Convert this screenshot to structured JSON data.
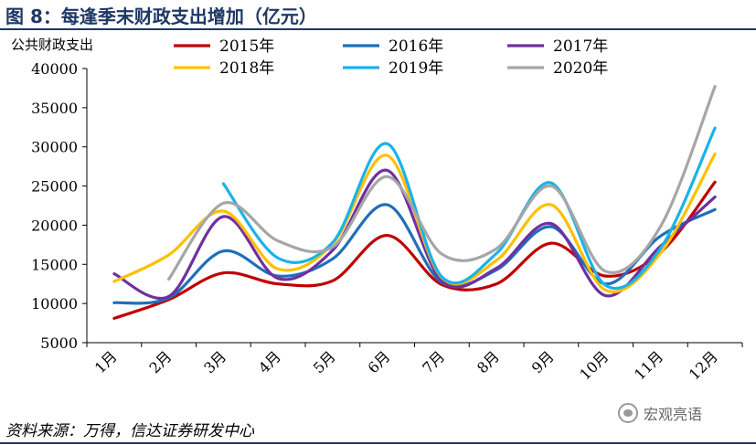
{
  "figure": {
    "title": "图 8：每逢季末财政支出增加（亿元）",
    "source": "资料来源：万得，信达证券研发中心",
    "watermark": "宏观亮语",
    "watermark_icon": "wechat-icon"
  },
  "chart_data": {
    "type": "line",
    "title": "图 8：每逢季末财政支出增加（亿元）",
    "ylabel": "公共财政支出",
    "xlabel": "",
    "categories": [
      "1月",
      "2月",
      "3月",
      "4月",
      "5月",
      "6月",
      "7月",
      "8月",
      "9月",
      "10月",
      "11月",
      "12月"
    ],
    "ylim": [
      5000,
      40000
    ],
    "yticks": [
      5000,
      10000,
      15000,
      20000,
      25000,
      30000,
      35000,
      40000
    ],
    "grid": false,
    "legend_position": "top",
    "series": [
      {
        "name": "2015年",
        "color": "#c00000",
        "values": [
          8100,
          10500,
          13900,
          12500,
          12900,
          18700,
          12400,
          12500,
          17700,
          13500,
          16500,
          25500
        ]
      },
      {
        "name": "2016年",
        "color": "#1f6fb8",
        "values": [
          10100,
          10700,
          16700,
          13500,
          15700,
          22600,
          12700,
          14300,
          19800,
          12500,
          18600,
          22000
        ]
      },
      {
        "name": "2017年",
        "color": "#7030a0",
        "values": [
          13800,
          10900,
          21100,
          13200,
          16800,
          27000,
          12900,
          14500,
          20200,
          11000,
          17300,
          23600
        ]
      },
      {
        "name": "2018年",
        "color": "#ffc000",
        "values": [
          12800,
          16200,
          21800,
          14400,
          17600,
          28900,
          13300,
          15500,
          22600,
          11700,
          16400,
          29100
        ]
      },
      {
        "name": "2019年",
        "color": "#1ab3e8",
        "values": [
          null,
          null,
          25300,
          15800,
          17800,
          30400,
          13400,
          16400,
          25400,
          12300,
          17000,
          32400
        ]
      },
      {
        "name": "2020年",
        "color": "#a6a6a6",
        "values": [
          null,
          13100,
          22800,
          18000,
          17200,
          26200,
          16300,
          17000,
          25000,
          14100,
          19800,
          37700
        ]
      }
    ]
  }
}
